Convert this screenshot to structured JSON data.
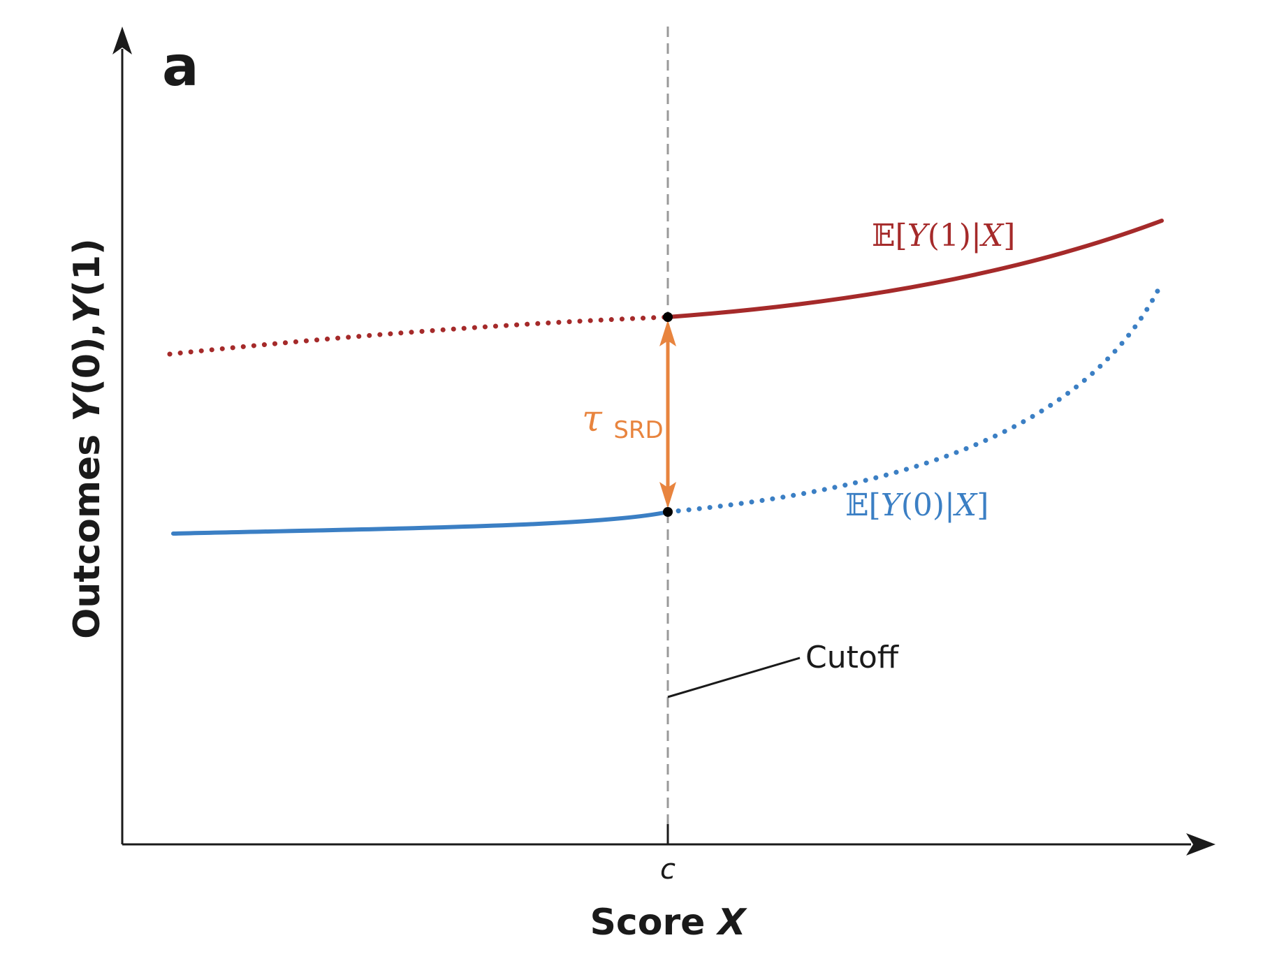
{
  "panel_label": "a",
  "axes": {
    "y_label_main": "Outcomes ",
    "y_label_y0": "Y",
    "y_label_y0_arg": "(0),",
    "y_label_y1": "Y",
    "y_label_y1_arg": "(1)",
    "x_label_main": "Score ",
    "x_label_var": "X",
    "cutoff_tick": "c"
  },
  "annotations": {
    "cutoff": "Cutoff",
    "tau_symbol": "τ",
    "tau_subscript": "SRD"
  },
  "curves": {
    "treated": {
      "bb": "𝔼",
      "open": "[",
      "y": "Y",
      "arg": "(1)|",
      "x": "X",
      "close": "]"
    },
    "control": {
      "bb": "𝔼",
      "open": "[",
      "y": "Y",
      "arg": "(0)|",
      "x": "X",
      "close": "]"
    }
  },
  "colors": {
    "treated": "#a52a2a",
    "control": "#3b7fc4",
    "effect": "#e8843e",
    "axis": "#1a1a1a",
    "cutoff_line": "#999999"
  }
}
